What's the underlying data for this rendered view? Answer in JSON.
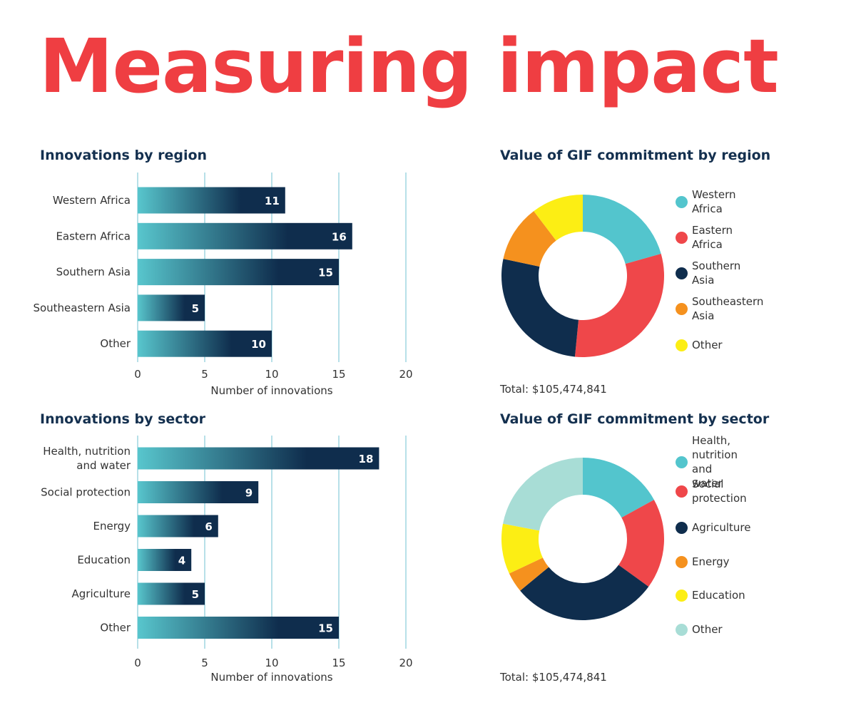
{
  "title": "Measuring impact",
  "colors": {
    "title": "#ef3e42",
    "heading": "#14304f",
    "bar_start": "#58c6cd",
    "bar_end": "#0f2d4d",
    "gridline": "#9fd6e0"
  },
  "region_bar": {
    "title": "Innovations by region",
    "xlabel": "Number of innovations",
    "ticks": [
      "0",
      "5",
      "10",
      "15",
      "20"
    ]
  },
  "sector_bar": {
    "title": "Innovations by sector",
    "xlabel": "Number of innovations",
    "ticks": [
      "0",
      "5",
      "10",
      "15",
      "20"
    ]
  },
  "region_pie": {
    "title": "Value of GIF commitment by region",
    "total": "Total: $105,474,841",
    "legend": [
      "Western Africa",
      "Eastern Africa",
      "Southern Asia",
      "Southeastern Asia",
      "Other"
    ]
  },
  "sector_pie": {
    "title": "Value of GIF commitment by sector",
    "total": "Total: $105,474,841",
    "legend": [
      "Health, nutrition\nand water",
      "Social protection",
      "Agriculture",
      "Energy",
      "Education",
      "Other"
    ]
  },
  "chart_data": [
    {
      "type": "bar",
      "orientation": "horizontal",
      "title": "Innovations by region",
      "categories": [
        "Western Africa",
        "Eastern Africa",
        "Southern Asia",
        "Southeastern Asia",
        "Other"
      ],
      "values": [
        11,
        16,
        15,
        5,
        10
      ],
      "xlabel": "Number of innovations",
      "xlim": [
        0,
        20
      ],
      "grid": true
    },
    {
      "type": "bar",
      "orientation": "horizontal",
      "title": "Innovations by sector",
      "categories": [
        "Health, nutrition\nand water",
        "Social protection",
        "Energy",
        "Education",
        "Agriculture",
        "Other"
      ],
      "values": [
        18,
        9,
        6,
        4,
        5,
        15
      ],
      "xlabel": "Number of innovations",
      "xlim": [
        0,
        20
      ],
      "grid": true
    },
    {
      "type": "pie",
      "donut": true,
      "title": "Value of GIF commitment by region",
      "labels": [
        "Western Africa",
        "Eastern Africa",
        "Southern Asia",
        "Southeastern Asia",
        "Other"
      ],
      "values": [
        20,
        30,
        26,
        11,
        10
      ],
      "colors": [
        "#53c5cd",
        "#ef474a",
        "#0f2d4d",
        "#f5911e",
        "#fcee14"
      ],
      "legend_position": "right",
      "total": "Total: $105,474,841"
    },
    {
      "type": "pie",
      "donut": true,
      "title": "Value of GIF commitment by sector",
      "labels": [
        "Health, nutrition\nand water",
        "Social protection",
        "Agriculture",
        "Energy",
        "Education",
        "Other"
      ],
      "values": [
        17,
        18,
        29,
        4,
        10,
        22
      ],
      "colors": [
        "#53c5cd",
        "#ef474a",
        "#0f2d4d",
        "#f5911e",
        "#fcee14",
        "#a8ddd6"
      ],
      "legend_position": "right",
      "total": "Total: $105,474,841"
    }
  ]
}
